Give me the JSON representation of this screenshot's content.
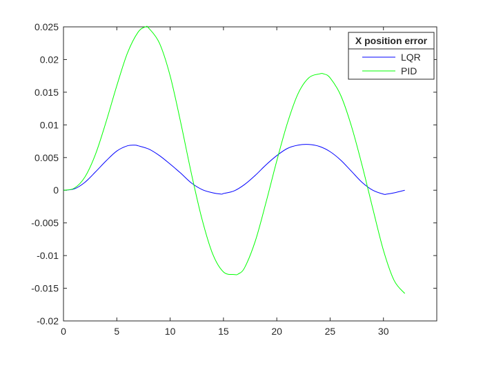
{
  "chart_data": {
    "type": "line",
    "title": "",
    "xlabel": "",
    "ylabel": "",
    "xlim": [
      0,
      35
    ],
    "ylim": [
      -0.02,
      0.025
    ],
    "xticks": [
      0,
      5,
      10,
      15,
      20,
      25,
      30
    ],
    "xtick_labels": [
      "0",
      "5",
      "10",
      "15",
      "20",
      "25",
      "30"
    ],
    "yticks": [
      -0.02,
      -0.015,
      -0.01,
      -0.005,
      0,
      0.005,
      0.01,
      0.015,
      0.02,
      0.025
    ],
    "ytick_labels": [
      "-0.02",
      "-0.015",
      "-0.01",
      "-0.005",
      "0",
      "0.005",
      "0.01",
      "0.015",
      "0.02",
      "0.025"
    ],
    "grid": false,
    "legend": {
      "title": "X position error",
      "position": "top-right"
    },
    "series": [
      {
        "name": "LQR",
        "color": "#0000ff",
        "x": [
          0,
          1,
          2,
          3,
          4,
          5,
          6,
          6.7,
          7,
          8,
          9,
          10,
          11,
          12,
          13,
          14,
          14.8,
          15,
          16,
          17,
          18,
          19,
          20,
          21,
          22,
          23,
          24,
          25,
          26,
          27,
          28,
          29,
          30,
          30.3,
          31,
          32
        ],
        "y": [
          0,
          0.0002,
          0.0012,
          0.0028,
          0.0045,
          0.006,
          0.0068,
          0.0069,
          0.0068,
          0.0063,
          0.0053,
          0.004,
          0.0026,
          0.0011,
          0.0001,
          -0.0004,
          -0.0006,
          -0.0005,
          -0.0001,
          0.0009,
          0.0023,
          0.0039,
          0.0053,
          0.0064,
          0.0069,
          0.007,
          0.0067,
          0.0059,
          0.0046,
          0.0029,
          0.0012,
          0,
          -0.0006,
          -0.0006,
          -0.0004,
          0
        ]
      },
      {
        "name": "PID",
        "color": "#00ff00",
        "x": [
          0,
          1,
          2,
          3,
          4,
          5,
          6,
          7,
          7.7,
          8,
          9,
          10,
          11,
          12,
          13,
          14,
          15,
          16,
          16.4,
          17,
          18,
          19,
          20,
          21,
          22,
          23,
          24,
          24.4,
          25,
          26,
          27,
          28,
          29,
          30,
          31,
          32
        ],
        "y": [
          0,
          0.0003,
          0.002,
          0.0055,
          0.0105,
          0.016,
          0.021,
          0.0242,
          0.025,
          0.0248,
          0.0225,
          0.0175,
          0.0103,
          0.0025,
          -0.0045,
          -0.0098,
          -0.0125,
          -0.0129,
          -0.0128,
          -0.0118,
          -0.0077,
          -0.0018,
          0.0045,
          0.0103,
          0.0148,
          0.0172,
          0.0178,
          0.0178,
          0.0172,
          0.0145,
          0.0098,
          0.0038,
          -0.0028,
          -0.0092,
          -0.0138,
          -0.0158
        ]
      }
    ]
  }
}
